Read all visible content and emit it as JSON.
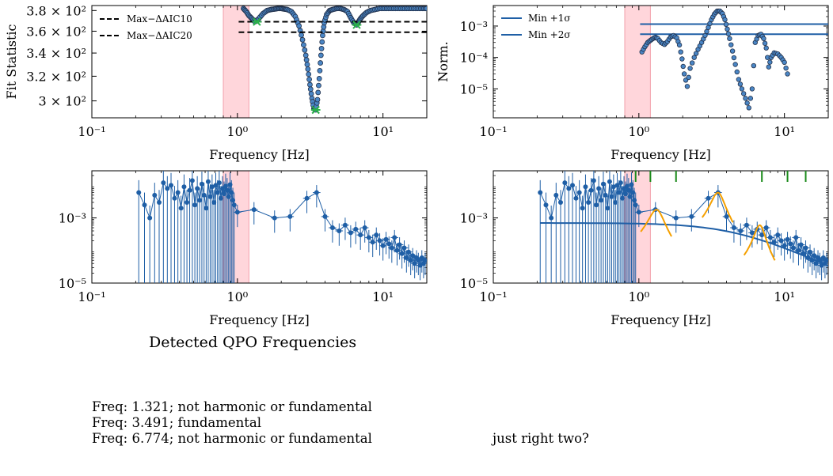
{
  "colors": {
    "blue": "#1f5fa6",
    "point_fill": "#4a86c5",
    "point_edge": "#22304a",
    "band": "#ffc0c8",
    "band_edge": "#f2a0aa",
    "green": "#2ab04a",
    "orange": "#f5a000",
    "tick_green": "#1a8a1a"
  },
  "band_hz": [
    0.8,
    1.2
  ],
  "panels": {
    "top_left": {
      "ylabel": "Fit Statistic",
      "xlabel": "Frequency [Hz]",
      "x_ticks": [
        {
          "v": 0.1,
          "label": "10⁻¹"
        },
        {
          "v": 1,
          "label": "10⁰"
        },
        {
          "v": 10,
          "label": "10¹"
        }
      ],
      "y_ticks": [
        {
          "v": 300,
          "label": "3 × 10²"
        },
        {
          "v": 320,
          "label": "3.2 × 10²"
        },
        {
          "v": 340,
          "label": "3.4 × 10²"
        },
        {
          "v": 360,
          "label": "3.6 × 10²"
        },
        {
          "v": 380,
          "label": "3.8 × 10²"
        }
      ],
      "legend": [
        "Max−ΔAIC10",
        "Max−ΔAIC20"
      ]
    },
    "top_right": {
      "ylabel": "Norm.",
      "xlabel": "Frequency [Hz]",
      "x_ticks": [
        {
          "v": 0.1,
          "label": "10⁻¹"
        },
        {
          "v": 1,
          "label": "10⁰"
        },
        {
          "v": 10,
          "label": "10¹"
        }
      ],
      "y_ticks": [
        {
          "v": 1e-05,
          "label": "10⁻⁵"
        },
        {
          "v": 0.0001,
          "label": "10⁻⁴"
        },
        {
          "v": 0.001,
          "label": "10⁻³"
        }
      ],
      "legend": [
        "Min +1σ",
        "Min +2σ"
      ]
    },
    "bottom_left": {
      "xlabel": "Frequency [Hz]",
      "x_ticks": [
        {
          "v": 0.1,
          "label": "10⁻¹"
        },
        {
          "v": 1,
          "label": "10⁰"
        },
        {
          "v": 10,
          "label": "10¹"
        }
      ],
      "y_ticks": [
        {
          "v": 1e-05,
          "label": "10⁻⁵"
        },
        {
          "v": 0.001,
          "label": "10⁻³"
        }
      ]
    },
    "bottom_right": {
      "xlabel": "Frequency [Hz]",
      "x_ticks": [
        {
          "v": 0.1,
          "label": "10⁻¹"
        },
        {
          "v": 1,
          "label": "10⁰"
        },
        {
          "v": 10,
          "label": "10¹"
        }
      ],
      "y_ticks": [
        {
          "v": 1e-05,
          "label": "10⁻⁵"
        },
        {
          "v": 0.001,
          "label": "10⁻³"
        }
      ]
    }
  },
  "qpo": {
    "title": "Detected QPO Frequencies",
    "lines": [
      "Freq: 1.321; not harmonic or fundamental",
      "Freq: 3.491; fundamental",
      "Freq: 6.774; not harmonic or fundamental"
    ],
    "note": "just right two?"
  },
  "chart_data": [
    {
      "type": "scatter",
      "panel": "top_left",
      "xscale": "log",
      "yscale": "log",
      "xlim": [
        0.1,
        20
      ],
      "ylim": [
        287,
        385
      ],
      "curve_x": [
        1.1,
        1.15,
        1.2,
        1.26,
        1.32,
        1.4,
        1.5,
        1.6,
        1.7,
        1.8,
        1.9,
        2.0,
        2.1,
        2.2,
        2.35,
        2.5,
        2.65,
        2.8,
        2.95,
        3.05,
        3.15,
        3.25,
        3.35,
        3.45,
        3.55,
        3.65,
        3.75,
        3.85,
        3.95,
        4.1,
        4.3,
        4.5,
        4.8,
        5.1,
        5.4,
        5.7,
        6.0,
        6.3,
        6.6,
        6.8,
        7.0,
        7.3,
        7.7,
        8.2,
        8.8,
        9.5,
        10.3,
        11.2,
        12.2,
        13.3,
        14.5,
        15.8,
        17.2,
        18.7,
        20.0
      ],
      "curve_y": [
        382,
        379,
        375,
        372,
        369,
        372,
        377,
        380,
        381,
        381.5,
        382,
        382,
        381.5,
        381,
        379,
        374,
        365,
        352,
        338,
        326,
        313,
        302,
        294,
        293,
        301,
        318,
        338,
        356,
        368,
        376,
        380,
        381,
        382,
        382,
        381,
        379,
        373,
        368,
        366,
        369,
        372,
        375,
        378,
        380,
        381,
        382,
        382,
        382,
        382,
        382,
        382,
        382,
        382,
        382,
        382
      ],
      "stars_x": [
        1.36,
        3.45,
        6.6
      ],
      "stars_y": [
        369,
        293,
        366
      ],
      "hlines": [
        {
          "name": "Max−ΔAIC10",
          "y": 369,
          "x": [
            1.02,
            20
          ]
        },
        {
          "name": "Max−ΔAIC20",
          "y": 359,
          "x": [
            1.02,
            20
          ]
        }
      ]
    },
    {
      "type": "scatter",
      "panel": "top_right",
      "xscale": "log",
      "yscale": "log",
      "xlim": [
        0.1,
        20
      ],
      "ylim": [
        1.2e-06,
        0.0045
      ],
      "curve_x": [
        1.05,
        1.1,
        1.15,
        1.2,
        1.25,
        1.3,
        1.35,
        1.42,
        1.5,
        1.57,
        1.65,
        1.73,
        1.82,
        1.9,
        1.98,
        2.05,
        2.15,
        2.25,
        2.4,
        2.55,
        2.7,
        2.85,
        3.0,
        3.15,
        3.3,
        3.45,
        3.6,
        3.75,
        3.9,
        4.05,
        4.2,
        4.4,
        4.6,
        4.85,
        5.1,
        5.4,
        5.7,
        6.0,
        6.3,
        6.6,
        6.9,
        7.2,
        7.5,
        7.8,
        8.1,
        8.5,
        9.0,
        9.5,
        10.0,
        10.5
      ],
      "curve_y": [
        0.00015,
        0.00022,
        0.0003,
        0.00035,
        0.0004,
        0.00044,
        0.0004,
        0.0003,
        0.00026,
        0.00032,
        0.00045,
        0.0005,
        0.00042,
        0.00025,
        9e-05,
        3e-05,
        1.2e-05,
        4.5e-05,
        0.0001,
        0.00018,
        0.0003,
        0.0005,
        0.0009,
        0.0016,
        0.0024,
        0.003,
        0.003,
        0.0025,
        0.0016,
        0.0008,
        0.0004,
        0.00016,
        6e-05,
        2e-05,
        1e-05,
        5e-06,
        2.5e-06,
        1e-05,
        0.0003,
        0.0005,
        0.00055,
        0.0004,
        0.0002,
        5e-05,
        0.0001,
        0.00014,
        0.00013,
        0.0001,
        7e-05,
        3e-05
      ],
      "hlines": [
        {
          "name": "Min +1σ",
          "y": 0.00115,
          "x": [
            1.02,
            20
          ]
        },
        {
          "name": "Min +2σ",
          "y": 0.00055,
          "x": [
            1.02,
            20
          ]
        }
      ]
    },
    {
      "type": "line",
      "panel": "bottom_left",
      "xscale": "log",
      "yscale": "log",
      "xlim": [
        0.1,
        20
      ],
      "ylim": [
        1e-05,
        0.028
      ],
      "x": [
        0.21,
        0.23,
        0.25,
        0.27,
        0.29,
        0.31,
        0.33,
        0.35,
        0.37,
        0.39,
        0.41,
        0.43,
        0.45,
        0.47,
        0.49,
        0.51,
        0.53,
        0.55,
        0.57,
        0.59,
        0.61,
        0.63,
        0.65,
        0.67,
        0.69,
        0.71,
        0.73,
        0.75,
        0.77,
        0.79,
        0.81,
        0.83,
        0.85,
        0.87,
        0.89,
        0.91,
        0.93,
        0.95,
        1.0,
        1.3,
        1.8,
        2.3,
        3.0,
        3.5,
        4.0,
        4.5,
        5.0,
        5.5,
        6.0,
        6.5,
        7.0,
        7.5,
        8.0,
        8.5,
        9.0,
        9.5,
        10.0,
        10.5,
        11.0,
        11.5,
        12.0,
        12.5,
        13.0,
        13.5,
        14.0,
        14.5,
        15.0,
        15.5,
        16.0,
        16.5,
        17.0,
        17.5,
        18.0,
        18.5,
        19.0,
        19.5
      ],
      "y": [
        0.006,
        0.0025,
        0.001,
        0.005,
        0.003,
        0.012,
        0.008,
        0.01,
        0.004,
        0.006,
        0.002,
        0.009,
        0.003,
        0.007,
        0.014,
        0.0025,
        0.008,
        0.0035,
        0.011,
        0.005,
        0.002,
        0.013,
        0.0045,
        0.009,
        0.003,
        0.01,
        0.006,
        0.012,
        0.004,
        0.008,
        0.0055,
        0.0095,
        0.007,
        0.0045,
        0.0105,
        0.006,
        0.0035,
        0.0025,
        0.0015,
        0.0018,
        0.001,
        0.0011,
        0.004,
        0.006,
        0.0011,
        0.0005,
        0.0004,
        0.0006,
        0.00035,
        0.00045,
        0.0003,
        0.0005,
        0.00025,
        0.00018,
        0.0003,
        0.0002,
        0.00014,
        0.00022,
        0.00016,
        0.00012,
        0.00025,
        0.0001,
        0.00015,
        8e-05,
        0.00012,
        6e-05,
        9e-05,
        5e-05,
        7e-05,
        4e-05,
        6e-05,
        5e-05,
        3.5e-05,
        6e-05,
        4e-05,
        5e-05
      ]
    },
    {
      "type": "line",
      "panel": "bottom_right",
      "xscale": "log",
      "yscale": "log",
      "xlim": [
        0.1,
        20
      ],
      "ylim": [
        1e-05,
        0.028
      ],
      "same_data_as": "bottom_left",
      "continuum_model": {
        "norm": 0.0007,
        "break_hz": 4.5,
        "x": [
          0.21,
          20
        ]
      },
      "lorentz_models": [
        {
          "center_hz": 1.32,
          "peak": 0.0018,
          "width_hz": 0.3
        },
        {
          "center_hz": 3.49,
          "peak": 0.006,
          "width_hz": 0.7
        },
        {
          "center_hz": 6.77,
          "peak": 0.0006,
          "width_hz": 1.1
        }
      ],
      "green_ticks_hz": [
        0.95,
        1.2,
        1.8,
        7.0,
        10.5,
        14.0
      ]
    }
  ]
}
